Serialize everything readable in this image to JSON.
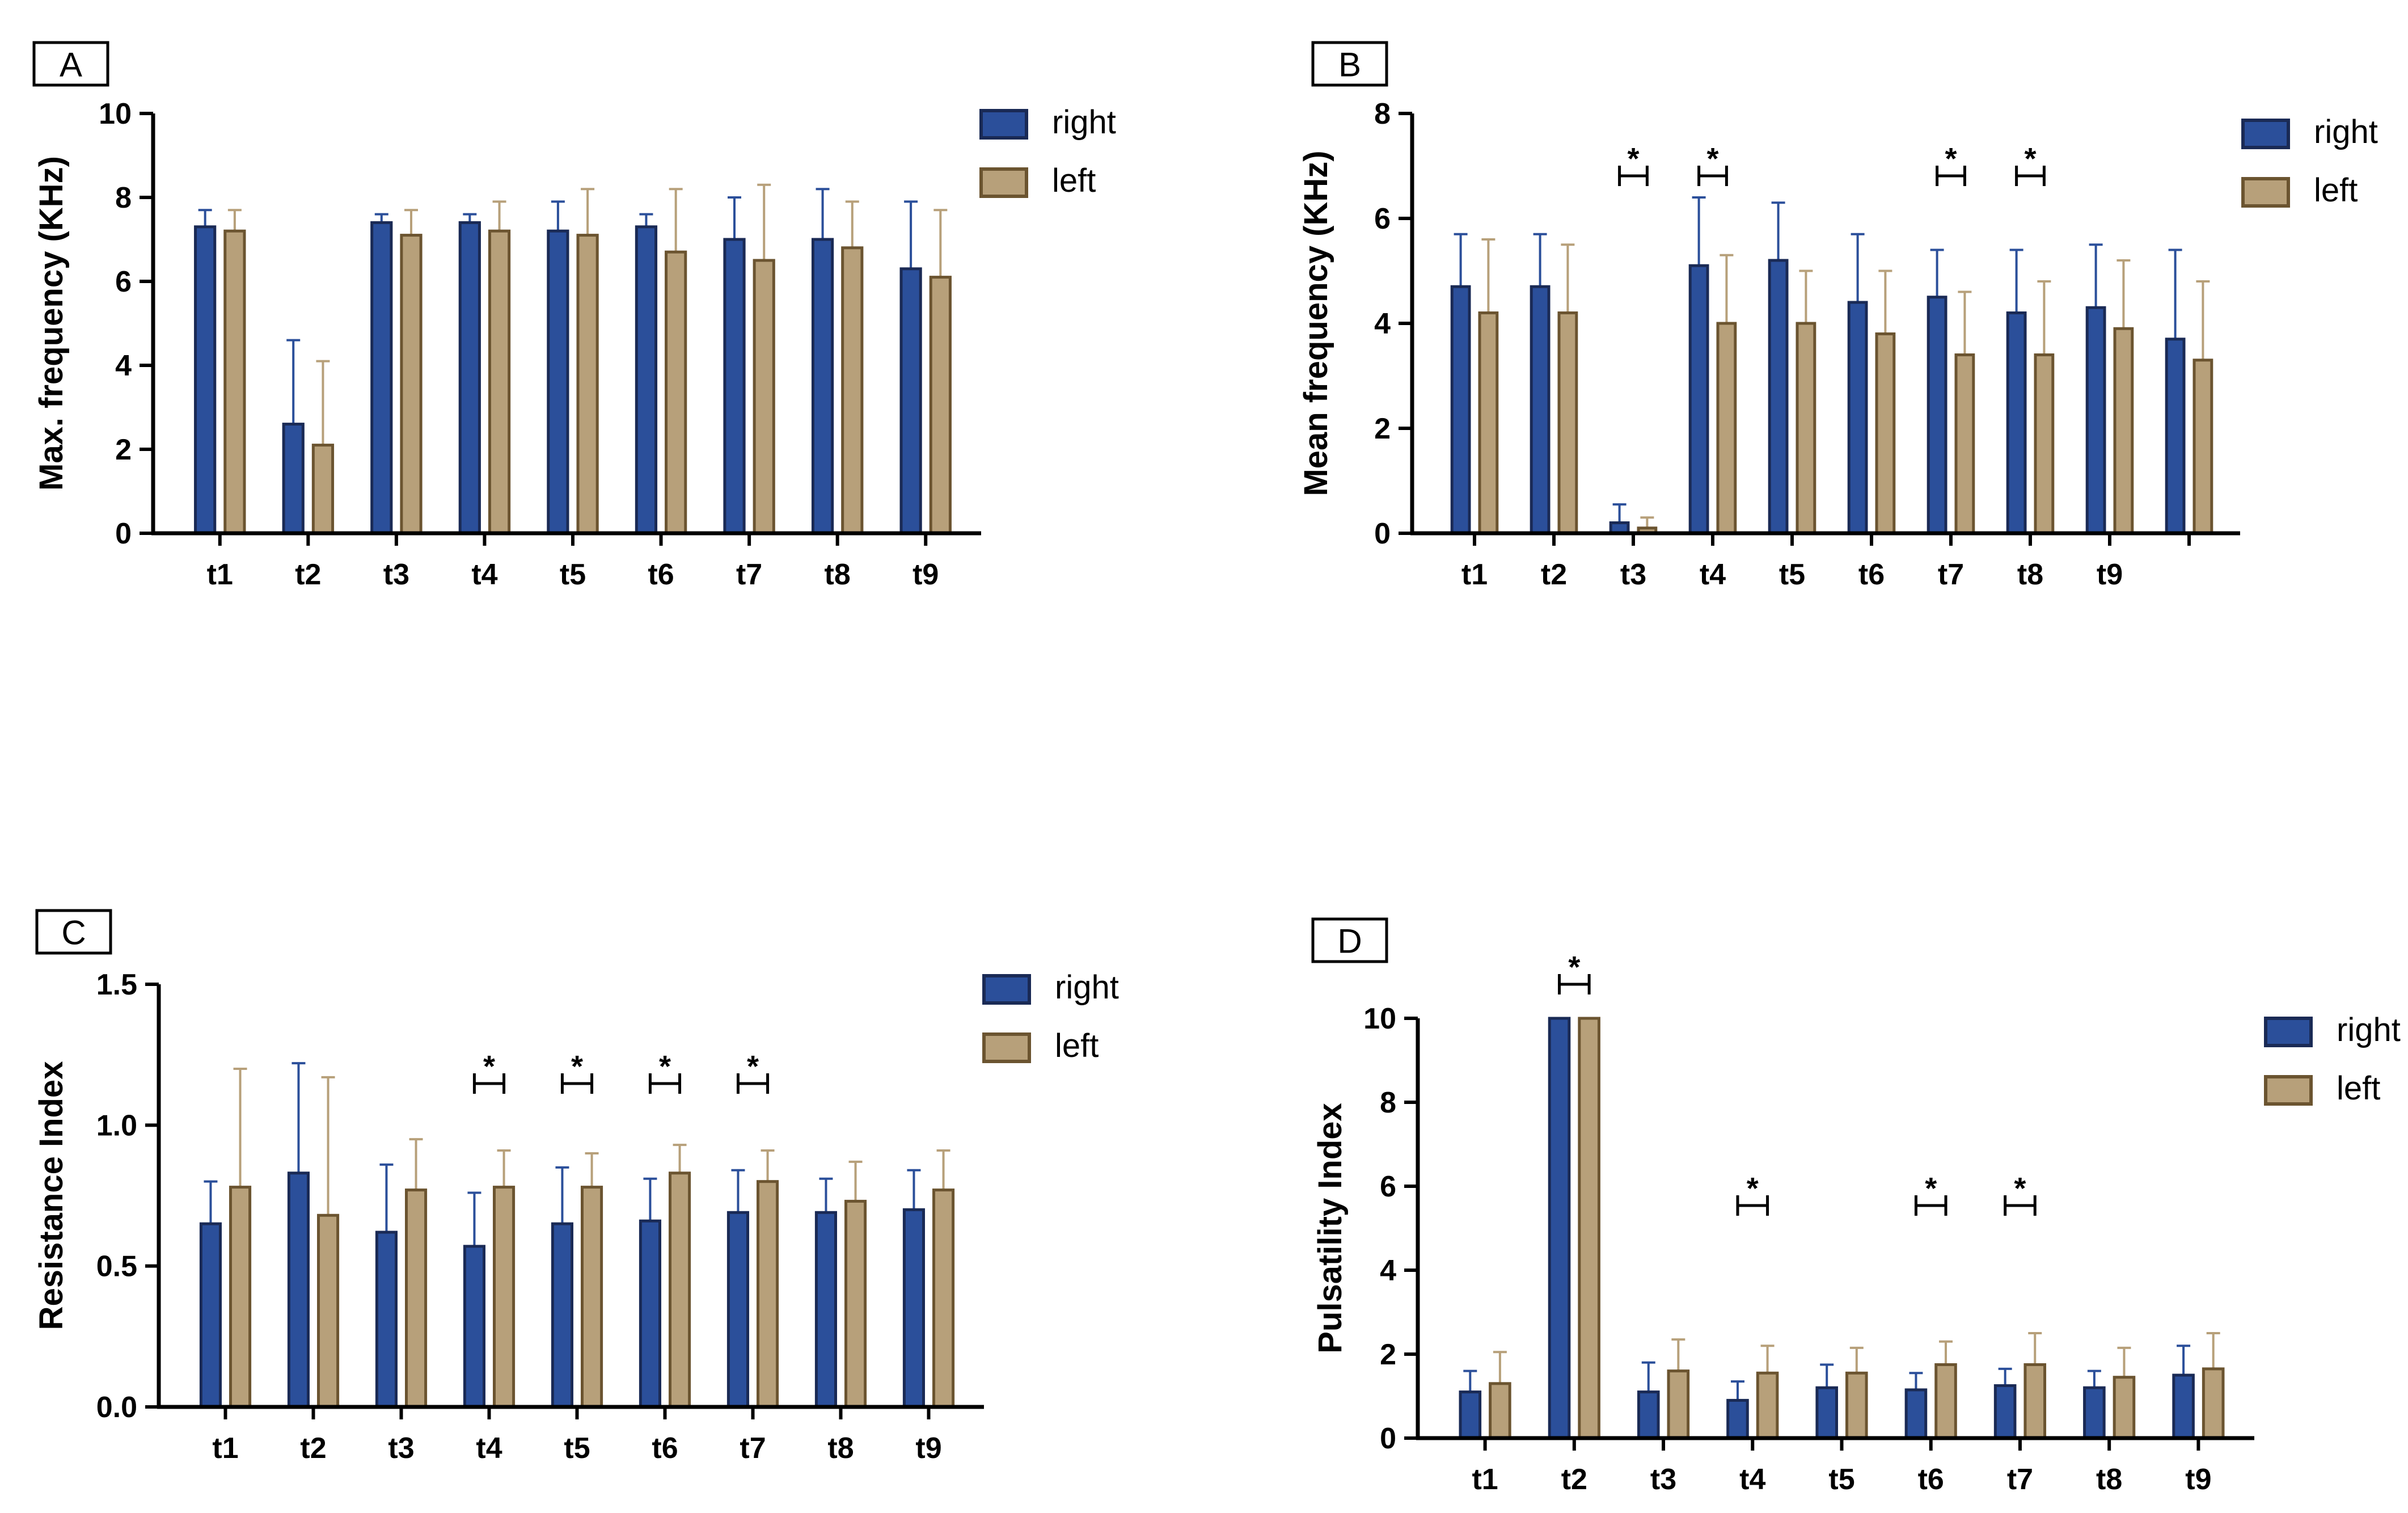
{
  "figure": {
    "style": {
      "right_color": "#2b4f9a",
      "left_color": "#b7a07a",
      "right_stroke": "#1a2a55",
      "left_stroke": "#6b5430",
      "axis_color": "#000000"
    }
  },
  "chart_data": [
    {
      "panel": "A",
      "type": "bar",
      "title": "",
      "ylabel": "Max. frequency (KHz)",
      "xlabel": "",
      "ylim": [
        0,
        10
      ],
      "yticks": [
        0,
        2,
        4,
        6,
        8,
        10
      ],
      "categories": [
        "t1",
        "t2",
        "t3",
        "t4",
        "t5",
        "t6",
        "t7",
        "t8",
        "t9"
      ],
      "series": [
        {
          "name": "right",
          "color": "#2b4f9a",
          "values": [
            7.3,
            2.6,
            7.4,
            7.4,
            7.2,
            7.3,
            7.0,
            7.0,
            6.3
          ],
          "errors": [
            0.4,
            2.0,
            0.2,
            0.2,
            0.7,
            0.3,
            1.0,
            1.2,
            1.6
          ]
        },
        {
          "name": "left",
          "color": "#b7a07a",
          "values": [
            7.2,
            2.1,
            7.1,
            7.2,
            7.1,
            6.7,
            6.5,
            6.8,
            6.1
          ],
          "errors": [
            0.5,
            2.0,
            0.6,
            0.7,
            1.1,
            1.5,
            1.8,
            1.1,
            1.6
          ]
        }
      ],
      "significance": [],
      "legend": "top-right"
    },
    {
      "panel": "B",
      "type": "bar",
      "title": "",
      "ylabel": "Mean frequency (KHz)",
      "xlabel": "",
      "ylim": [
        0,
        8
      ],
      "yticks": [
        0,
        2,
        4,
        6,
        8
      ],
      "categories": [
        "t1",
        "t2",
        "t3",
        "t4",
        "t5",
        "t6",
        "t7",
        "t8",
        "t9",
        ""
      ],
      "series": [
        {
          "name": "right",
          "color": "#2b4f9a",
          "values": [
            4.7,
            4.7,
            0.2,
            5.1,
            5.2,
            4.4,
            4.5,
            4.2,
            4.3,
            3.7
          ],
          "errors": [
            1.0,
            1.0,
            0.35,
            1.3,
            1.1,
            1.3,
            0.9,
            1.2,
            1.2,
            1.7
          ]
        },
        {
          "name": "left",
          "color": "#b7a07a",
          "values": [
            4.2,
            4.2,
            0.1,
            4.0,
            4.0,
            3.8,
            3.4,
            3.4,
            3.9,
            3.3
          ],
          "errors": [
            1.4,
            1.3,
            0.2,
            1.3,
            1.0,
            1.2,
            1.2,
            1.4,
            1.3,
            1.5
          ]
        }
      ],
      "significance": [
        {
          "category": "t3",
          "label": "*"
        },
        {
          "category": "t4",
          "label": "*"
        },
        {
          "category": "t7",
          "label": "*"
        },
        {
          "category": "t8",
          "label": "*"
        }
      ],
      "legend": "top-right"
    },
    {
      "panel": "C",
      "type": "bar",
      "title": "",
      "ylabel": "Resistance Index",
      "xlabel": "",
      "ylim": [
        0,
        1.5
      ],
      "yticks": [
        "0.0",
        "0.5",
        "1.0",
        "1.5"
      ],
      "categories": [
        "t1",
        "t2",
        "t3",
        "t4",
        "t5",
        "t6",
        "t7",
        "t8",
        "t9"
      ],
      "series": [
        {
          "name": "right",
          "color": "#2b4f9a",
          "values": [
            0.65,
            0.83,
            0.62,
            0.57,
            0.65,
            0.66,
            0.69,
            0.69,
            0.7
          ],
          "errors": [
            0.15,
            0.39,
            0.24,
            0.19,
            0.2,
            0.15,
            0.15,
            0.12,
            0.14
          ]
        },
        {
          "name": "left",
          "color": "#b7a07a",
          "values": [
            0.78,
            0.68,
            0.77,
            0.78,
            0.78,
            0.83,
            0.8,
            0.73,
            0.77
          ],
          "errors": [
            0.42,
            0.49,
            0.18,
            0.13,
            0.12,
            0.1,
            0.11,
            0.14,
            0.14
          ]
        }
      ],
      "significance": [
        {
          "category": "t4",
          "label": "*"
        },
        {
          "category": "t5",
          "label": "*"
        },
        {
          "category": "t6",
          "label": "*"
        },
        {
          "category": "t7",
          "label": "*"
        }
      ],
      "legend": "top-right"
    },
    {
      "panel": "D",
      "type": "bar",
      "title": "",
      "ylabel": "Pulsatility Index",
      "xlabel": "",
      "ylim": [
        0,
        10
      ],
      "yticks": [
        0,
        2,
        4,
        6,
        8,
        10
      ],
      "categories": [
        "t1",
        "t2",
        "t3",
        "t4",
        "t5",
        "t6",
        "t7",
        "t8",
        "t9"
      ],
      "series": [
        {
          "name": "right",
          "color": "#2b4f9a",
          "values": [
            1.1,
            10,
            1.1,
            0.9,
            1.2,
            1.15,
            1.25,
            1.2,
            1.5
          ],
          "errors": [
            0.5,
            0,
            0.7,
            0.45,
            0.55,
            0.4,
            0.4,
            0.4,
            0.7
          ]
        },
        {
          "name": "left",
          "color": "#b7a07a",
          "values": [
            1.3,
            10,
            1.6,
            1.55,
            1.55,
            1.75,
            1.75,
            1.45,
            1.65
          ],
          "errors": [
            0.75,
            0,
            0.75,
            0.65,
            0.6,
            0.55,
            0.75,
            0.7,
            0.85
          ]
        }
      ],
      "significance": [
        {
          "category": "t2",
          "label": "*"
        },
        {
          "category": "t4",
          "label": "*"
        },
        {
          "category": "t6",
          "label": "*"
        },
        {
          "category": "t7",
          "label": "*"
        }
      ],
      "legend": "top-right"
    }
  ]
}
